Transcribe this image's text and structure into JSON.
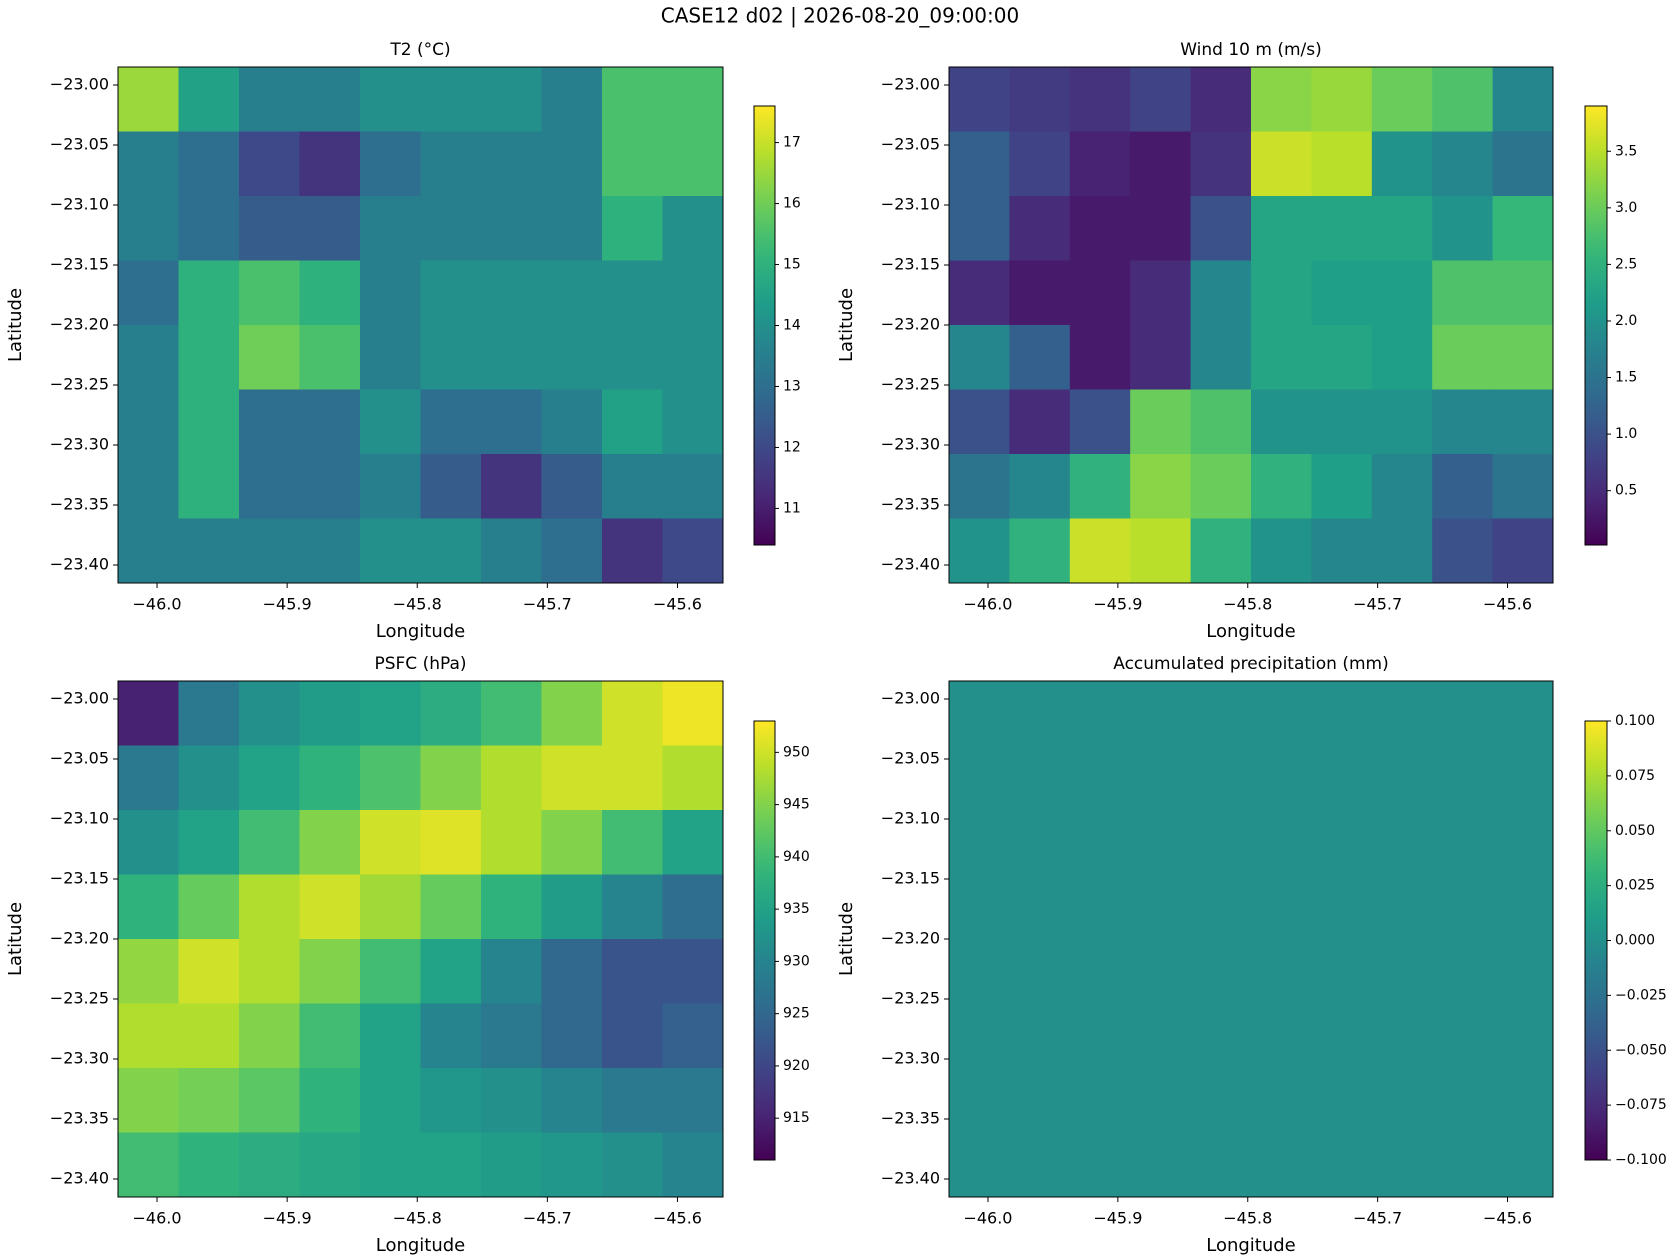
{
  "title": "CASE12 d02 | 2026-08-20_09:00:00",
  "chart_data": [
    {
      "type": "heatmap",
      "title": "T2 (°C)",
      "xlabel": "Longitude",
      "ylabel": "Latitude",
      "xlim": [
        -46.03,
        -45.565
      ],
      "ylim": [
        -23.415,
        -22.985
      ],
      "xticks": [
        {
          "value": -46.0,
          "label": "−46.0"
        },
        {
          "value": -45.9,
          "label": "−45.9"
        },
        {
          "value": -45.8,
          "label": "−45.8"
        },
        {
          "value": -45.7,
          "label": "−45.7"
        },
        {
          "value": -45.6,
          "label": "−45.6"
        }
      ],
      "yticks": [
        {
          "value": -23.0,
          "label": "−23.00"
        },
        {
          "value": -23.05,
          "label": "−23.05"
        },
        {
          "value": -23.1,
          "label": "−23.10"
        },
        {
          "value": -23.15,
          "label": "−23.15"
        },
        {
          "value": -23.2,
          "label": "−23.20"
        },
        {
          "value": -23.25,
          "label": "−23.25"
        },
        {
          "value": -23.3,
          "label": "−23.30"
        },
        {
          "value": -23.35,
          "label": "−23.35"
        },
        {
          "value": -23.4,
          "label": "−23.40"
        }
      ],
      "z": [
        [
          16.5,
          14.5,
          13.5,
          13.5,
          14,
          14,
          14,
          13.5,
          15.5,
          15.5
        ],
        [
          13.5,
          13,
          12,
          11.5,
          13,
          13.5,
          13.5,
          13.5,
          15.5,
          15.5
        ],
        [
          13.5,
          13,
          12.5,
          12.5,
          13.5,
          13.5,
          13.5,
          13.5,
          15,
          14
        ],
        [
          13,
          15,
          15.5,
          15,
          13.5,
          14,
          14,
          14,
          14,
          14
        ],
        [
          13.5,
          15,
          16,
          15.5,
          13.5,
          14,
          14,
          14,
          14,
          14
        ],
        [
          13.5,
          15,
          13,
          13,
          14,
          13,
          13,
          13.5,
          14.5,
          14
        ],
        [
          13.5,
          15,
          13,
          13,
          13.5,
          12.5,
          11.5,
          12.5,
          13.5,
          13.5
        ],
        [
          13.5,
          13.5,
          13.5,
          13.5,
          14,
          14,
          13.5,
          13,
          11.5,
          12
        ]
      ],
      "clim": [
        10.4,
        17.6
      ],
      "cticks": [
        11,
        12,
        13,
        14,
        15,
        16,
        17
      ]
    },
    {
      "type": "heatmap",
      "title": "Wind 10 m (m/s)",
      "xlabel": "Longitude",
      "ylabel": "Latitude",
      "xlim": [
        -46.03,
        -45.565
      ],
      "ylim": [
        -23.415,
        -22.985
      ],
      "xticks": [
        {
          "value": -46.0,
          "label": "−46.0"
        },
        {
          "value": -45.9,
          "label": "−45.9"
        },
        {
          "value": -45.8,
          "label": "−45.8"
        },
        {
          "value": -45.7,
          "label": "−45.7"
        },
        {
          "value": -45.6,
          "label": "−45.6"
        }
      ],
      "yticks": [
        {
          "value": -23.0,
          "label": "−23.00"
        },
        {
          "value": -23.05,
          "label": "−23.05"
        },
        {
          "value": -23.1,
          "label": "−23.10"
        },
        {
          "value": -23.15,
          "label": "−23.15"
        },
        {
          "value": -23.2,
          "label": "−23.20"
        },
        {
          "value": -23.25,
          "label": "−23.25"
        },
        {
          "value": -23.3,
          "label": "−23.30"
        },
        {
          "value": -23.35,
          "label": "−23.35"
        },
        {
          "value": -23.4,
          "label": "−23.40"
        }
      ],
      "z": [
        [
          0.8,
          0.7,
          0.6,
          0.8,
          0.5,
          3.2,
          3.3,
          3.0,
          2.8,
          1.8
        ],
        [
          1.2,
          0.8,
          0.4,
          0.3,
          0.6,
          3.6,
          3.5,
          2.0,
          1.8,
          1.5
        ],
        [
          1.2,
          0.5,
          0.3,
          0.3,
          1.0,
          2.3,
          2.3,
          2.3,
          2.0,
          2.6
        ],
        [
          0.5,
          0.3,
          0.3,
          0.5,
          1.8,
          2.3,
          2.2,
          2.2,
          2.8,
          2.8
        ],
        [
          1.8,
          1.2,
          0.3,
          0.5,
          1.8,
          2.3,
          2.3,
          2.2,
          3.0,
          3.0
        ],
        [
          1.0,
          0.5,
          1.0,
          3.0,
          2.8,
          2.0,
          2.0,
          2.0,
          1.8,
          1.8
        ],
        [
          1.5,
          1.8,
          2.5,
          3.2,
          3.0,
          2.5,
          2.2,
          1.8,
          1.2,
          1.5
        ],
        [
          2.0,
          2.5,
          3.6,
          3.5,
          2.5,
          2.0,
          1.8,
          1.8,
          1.0,
          0.8
        ]
      ],
      "clim": [
        0.02,
        3.9
      ],
      "cticks": [
        0.5,
        {
          "value": 1.0,
          "label": "1.0"
        },
        1.5,
        {
          "value": 2.0,
          "label": "2.0"
        },
        2.5,
        {
          "value": 3.0,
          "label": "3.0"
        },
        3.5
      ]
    },
    {
      "type": "heatmap",
      "title": "PSFC (hPa)",
      "xlabel": "Longitude",
      "ylabel": "Latitude",
      "xlim": [
        -46.03,
        -45.565
      ],
      "ylim": [
        -23.415,
        -22.985
      ],
      "xticks": [
        {
          "value": -46.0,
          "label": "−46.0"
        },
        {
          "value": -45.9,
          "label": "−45.9"
        },
        {
          "value": -45.8,
          "label": "−45.8"
        },
        {
          "value": -45.7,
          "label": "−45.7"
        },
        {
          "value": -45.6,
          "label": "−45.6"
        }
      ],
      "yticks": [
        {
          "value": -23.0,
          "label": "−23.00"
        },
        {
          "value": -23.05,
          "label": "−23.05"
        },
        {
          "value": -23.1,
          "label": "−23.10"
        },
        {
          "value": -23.15,
          "label": "−23.15"
        },
        {
          "value": -23.2,
          "label": "−23.20"
        },
        {
          "value": -23.25,
          "label": "−23.25"
        },
        {
          "value": -23.3,
          "label": "−23.30"
        },
        {
          "value": -23.35,
          "label": "−23.35"
        },
        {
          "value": -23.4,
          "label": "−23.40"
        }
      ],
      "z": [
        [
          915,
          928,
          932,
          934,
          935,
          937,
          940,
          945,
          950,
          952
        ],
        [
          928,
          932,
          935,
          938,
          941,
          945,
          948,
          950,
          950,
          948
        ],
        [
          932,
          935,
          940,
          945,
          950,
          951,
          948,
          945,
          940,
          935
        ],
        [
          938,
          943,
          948,
          950,
          947,
          943,
          938,
          934,
          930,
          926
        ],
        [
          946,
          950,
          948,
          945,
          940,
          935,
          930,
          925,
          922,
          922
        ],
        [
          948,
          948,
          945,
          940,
          935,
          930,
          928,
          925,
          922,
          924
        ],
        [
          945,
          944,
          942,
          938,
          935,
          933,
          932,
          930,
          928,
          928
        ],
        [
          940,
          938,
          937,
          936,
          935,
          935,
          934,
          933,
          932,
          930
        ]
      ],
      "clim": [
        911,
        953
      ],
      "cticks": [
        915,
        920,
        925,
        930,
        935,
        940,
        945,
        950
      ]
    },
    {
      "type": "heatmap",
      "title": "Accumulated precipitation (mm)",
      "xlabel": "Longitude",
      "ylabel": "Latitude",
      "xlim": [
        -46.03,
        -45.565
      ],
      "ylim": [
        -23.415,
        -22.985
      ],
      "xticks": [
        {
          "value": -46.0,
          "label": "−46.0"
        },
        {
          "value": -45.9,
          "label": "−45.9"
        },
        {
          "value": -45.8,
          "label": "−45.8"
        },
        {
          "value": -45.7,
          "label": "−45.7"
        },
        {
          "value": -45.6,
          "label": "−45.6"
        }
      ],
      "yticks": [
        {
          "value": -23.0,
          "label": "−23.00"
        },
        {
          "value": -23.05,
          "label": "−23.05"
        },
        {
          "value": -23.1,
          "label": "−23.10"
        },
        {
          "value": -23.15,
          "label": "−23.15"
        },
        {
          "value": -23.2,
          "label": "−23.20"
        },
        {
          "value": -23.25,
          "label": "−23.25"
        },
        {
          "value": -23.3,
          "label": "−23.30"
        },
        {
          "value": -23.35,
          "label": "−23.35"
        },
        {
          "value": -23.4,
          "label": "−23.40"
        }
      ],
      "z": [
        [
          0,
          0,
          0,
          0,
          0,
          0,
          0,
          0,
          0,
          0
        ],
        [
          0,
          0,
          0,
          0,
          0,
          0,
          0,
          0,
          0,
          0
        ],
        [
          0,
          0,
          0,
          0,
          0,
          0,
          0,
          0,
          0,
          0
        ],
        [
          0,
          0,
          0,
          0,
          0,
          0,
          0,
          0,
          0,
          0
        ],
        [
          0,
          0,
          0,
          0,
          0,
          0,
          0,
          0,
          0,
          0
        ],
        [
          0,
          0,
          0,
          0,
          0,
          0,
          0,
          0,
          0,
          0
        ],
        [
          0,
          0,
          0,
          0,
          0,
          0,
          0,
          0,
          0,
          0
        ],
        [
          0,
          0,
          0,
          0,
          0,
          0,
          0,
          0,
          0,
          0
        ]
      ],
      "clim": [
        -0.1,
        0.1
      ],
      "cticks": [
        {
          "value": -0.1,
          "label": "−0.100"
        },
        {
          "value": -0.075,
          "label": "−0.075"
        },
        {
          "value": -0.05,
          "label": "−0.050"
        },
        {
          "value": -0.025,
          "label": "−0.025"
        },
        {
          "value": 0,
          "label": "0.000"
        },
        {
          "value": 0.025,
          "label": "0.025"
        },
        {
          "value": 0.05,
          "label": "0.050"
        },
        {
          "value": 0.075,
          "label": "0.075"
        },
        {
          "value": 0.1,
          "label": "0.100"
        }
      ]
    }
  ]
}
